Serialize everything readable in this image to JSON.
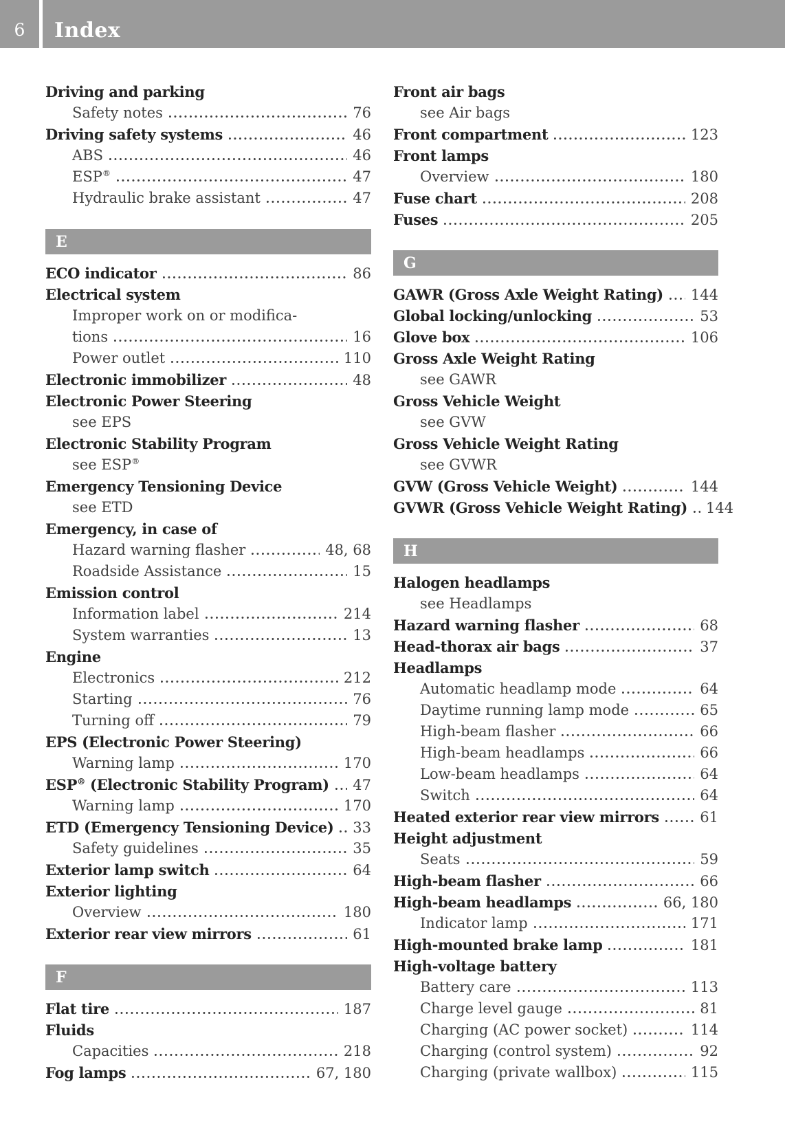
{
  "page": {
    "number": "6",
    "title": "Index"
  },
  "colors": {
    "bar_bg": "#9b9b9b",
    "bar_text": "#ffffff",
    "text_bold": "#242424",
    "text_regular": "#414141",
    "page_bg": "#ffffff"
  },
  "index": {
    "columns": [
      {
        "blocks": [
          {
            "rows": [
              {
                "text": "Driving and parking",
                "bold": true
              },
              {
                "text": "Safety notes",
                "indent": true,
                "page": "76"
              },
              {
                "text": "Driving safety systems",
                "bold": true,
                "page": "46"
              },
              {
                "text": "ABS",
                "indent": true,
                "page": "46"
              },
              {
                "text": "ESP®",
                "indent": true,
                "page": "47"
              },
              {
                "text": "Hydraulic brake assistant",
                "indent": true,
                "page": "47"
              }
            ]
          },
          {
            "section": "E"
          },
          {
            "rows": [
              {
                "text": "ECO indicator",
                "bold": true,
                "page": "86"
              },
              {
                "text": "Electrical system",
                "bold": true
              },
              {
                "text": "Improper work on or modifica-",
                "indent": true
              },
              {
                "text": "tions",
                "indent": true,
                "page": "16"
              },
              {
                "text": "Power outlet",
                "indent": true,
                "page": "110"
              },
              {
                "text": "Electronic immobilizer",
                "bold": true,
                "page": "48"
              },
              {
                "text": "Electronic Power Steering",
                "bold": true
              },
              {
                "text": "see EPS",
                "indent": true
              },
              {
                "text": "Electronic Stability Program",
                "bold": true
              },
              {
                "text": "see ESP®",
                "indent": true
              },
              {
                "text": "Emergency Tensioning Device",
                "bold": true
              },
              {
                "text": "see ETD",
                "indent": true
              },
              {
                "text": "Emergency, in case of",
                "bold": true
              },
              {
                "text": "Hazard warning flasher",
                "indent": true,
                "page": "48, 68"
              },
              {
                "text": "Roadside Assistance",
                "indent": true,
                "page": "15"
              },
              {
                "text": "Emission control",
                "bold": true
              },
              {
                "text": "Information label",
                "indent": true,
                "page": "214"
              },
              {
                "text": "System warranties",
                "indent": true,
                "page": "13"
              },
              {
                "text": "Engine",
                "bold": true
              },
              {
                "text": "Electronics",
                "indent": true,
                "page": "212"
              },
              {
                "text": "Starting",
                "indent": true,
                "page": "76"
              },
              {
                "text": "Turning off",
                "indent": true,
                "page": "79"
              },
              {
                "text": "EPS (Electronic Power Steering)",
                "bold": true
              },
              {
                "text": "Warning lamp",
                "indent": true,
                "page": "170"
              },
              {
                "text": "ESP® (Electronic Stability Program)",
                "bold": true,
                "page": "47"
              },
              {
                "text": "Warning lamp",
                "indent": true,
                "page": "170"
              },
              {
                "text": "ETD (Emergency Tensioning Device)",
                "bold": true,
                "page": "33"
              },
              {
                "text": "Safety guidelines",
                "indent": true,
                "page": "35"
              },
              {
                "text": "Exterior lamp switch",
                "bold": true,
                "page": "64"
              },
              {
                "text": "Exterior lighting",
                "bold": true
              },
              {
                "text": "Overview",
                "indent": true,
                "page": "180"
              },
              {
                "text": "Exterior rear view mirrors",
                "bold": true,
                "page": "61"
              }
            ]
          },
          {
            "section": "F"
          },
          {
            "rows": [
              {
                "text": "Flat tire",
                "bold": true,
                "page": "187"
              },
              {
                "text": "Fluids",
                "bold": true
              },
              {
                "text": "Capacities",
                "indent": true,
                "page": "218"
              },
              {
                "text": "Fog lamps",
                "bold": true,
                "page": "67, 180"
              }
            ]
          }
        ]
      },
      {
        "blocks": [
          {
            "rows": [
              {
                "text": "Front air bags",
                "bold": true
              },
              {
                "text": "see Air bags",
                "indent": true
              },
              {
                "text": "Front compartment",
                "bold": true,
                "page": "123"
              },
              {
                "text": "Front lamps",
                "bold": true
              },
              {
                "text": "Overview",
                "indent": true,
                "page": "180"
              },
              {
                "text": "Fuse chart",
                "bold": true,
                "page": "208"
              },
              {
                "text": "Fuses",
                "bold": true,
                "page": "205"
              }
            ]
          },
          {
            "section": "G"
          },
          {
            "rows": [
              {
                "text": "GAWR (Gross Axle Weight Rating)",
                "bold": true,
                "page": "144"
              },
              {
                "text": "Global locking/unlocking",
                "bold": true,
                "page": "53"
              },
              {
                "text": "Glove box",
                "bold": true,
                "page": "106"
              },
              {
                "text": "Gross Axle Weight Rating",
                "bold": true
              },
              {
                "text": "see GAWR",
                "indent": true
              },
              {
                "text": "Gross Vehicle Weight",
                "bold": true
              },
              {
                "text": "see GVW",
                "indent": true
              },
              {
                "text": "Gross Vehicle Weight Rating",
                "bold": true
              },
              {
                "text": "see GVWR",
                "indent": true
              },
              {
                "text": "GVW (Gross Vehicle Weight)",
                "bold": true,
                "page": "144"
              },
              {
                "text": "GVWR (Gross Vehicle Weight Rating)",
                "bold": true,
                "page": "144"
              }
            ]
          },
          {
            "section": "H"
          },
          {
            "rows": [
              {
                "text": "Halogen headlamps",
                "bold": true
              },
              {
                "text": "see Headlamps",
                "indent": true
              },
              {
                "text": "Hazard warning flasher",
                "bold": true,
                "page": "68"
              },
              {
                "text": "Head-thorax air bags",
                "bold": true,
                "page": "37"
              },
              {
                "text": "Headlamps",
                "bold": true
              },
              {
                "text": "Automatic headlamp mode",
                "indent": true,
                "page": "64"
              },
              {
                "text": "Daytime running lamp mode",
                "indent": true,
                "page": "65"
              },
              {
                "text": "High-beam flasher",
                "indent": true,
                "page": "66"
              },
              {
                "text": "High-beam headlamps",
                "indent": true,
                "page": "66"
              },
              {
                "text": "Low-beam headlamps",
                "indent": true,
                "page": "64"
              },
              {
                "text": "Switch",
                "indent": true,
                "page": "64"
              },
              {
                "text": "Heated exterior rear view mirrors",
                "bold": true,
                "page": "61"
              },
              {
                "text": "Height adjustment",
                "bold": true
              },
              {
                "text": "Seats",
                "indent": true,
                "page": "59"
              },
              {
                "text": "High-beam flasher",
                "bold": true,
                "page": "66"
              },
              {
                "text": "High-beam headlamps",
                "bold": true,
                "page": "66, 180"
              },
              {
                "text": "Indicator lamp",
                "indent": true,
                "page": "171"
              },
              {
                "text": "High-mounted brake lamp",
                "bold": true,
                "page": "181"
              },
              {
                "text": "High-voltage battery",
                "bold": true
              },
              {
                "text": "Battery care",
                "indent": true,
                "page": "113"
              },
              {
                "text": "Charge level gauge",
                "indent": true,
                "page": "81"
              },
              {
                "text": "Charging (AC power socket)",
                "indent": true,
                "page": "114"
              },
              {
                "text": "Charging (control system)",
                "indent": true,
                "page": "92"
              },
              {
                "text": "Charging (private wallbox)",
                "indent": true,
                "page": "115"
              }
            ]
          }
        ]
      }
    ]
  }
}
